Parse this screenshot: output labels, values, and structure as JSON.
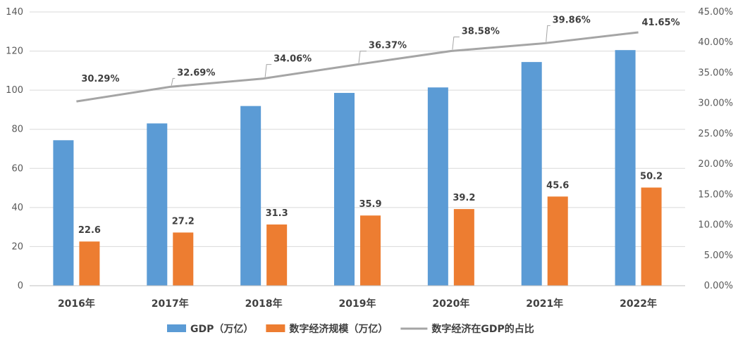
{
  "chart_data": {
    "type": "bar",
    "categories": [
      "2016年",
      "2017年",
      "2018年",
      "2019年",
      "2020年",
      "2021年",
      "2022年"
    ],
    "series": [
      {
        "name": "GDP（万亿）",
        "type": "bar",
        "axis": "left",
        "color": "#5B9BD5",
        "values": [
          74.4,
          83.0,
          91.9,
          98.6,
          101.4,
          114.4,
          120.5
        ],
        "labels": []
      },
      {
        "name": "数字经济规模（万亿）",
        "type": "bar",
        "axis": "left",
        "color": "#ED7D31",
        "values": [
          22.6,
          27.2,
          31.3,
          35.9,
          39.2,
          45.6,
          50.2
        ],
        "labels": [
          "22.6",
          "27.2",
          "31.3",
          "35.9",
          "39.2",
          "45.6",
          "50.2"
        ]
      },
      {
        "name": "数字经济在GDP的占比",
        "type": "line",
        "axis": "right",
        "color": "#A5A5A5",
        "values": [
          30.29,
          32.69,
          34.06,
          36.37,
          38.58,
          39.86,
          41.65
        ],
        "labels": [
          "30.29%",
          "32.69%",
          "34.06%",
          "36.37%",
          "38.58%",
          "39.86%",
          "41.65%"
        ]
      }
    ],
    "y_left": {
      "min": 0,
      "max": 140,
      "step": 20,
      "ticks": [
        "0",
        "20",
        "40",
        "60",
        "80",
        "100",
        "120",
        "140"
      ]
    },
    "y_right": {
      "min": 0,
      "max": 45,
      "step": 5,
      "ticks": [
        "0.00%",
        "5.00%",
        "10.00%",
        "15.00%",
        "20.00%",
        "25.00%",
        "30.00%",
        "35.00%",
        "40.00%",
        "45.00%"
      ]
    },
    "grid": true,
    "legend": "bottom",
    "title": "",
    "xlabel": "",
    "ylabel": ""
  }
}
